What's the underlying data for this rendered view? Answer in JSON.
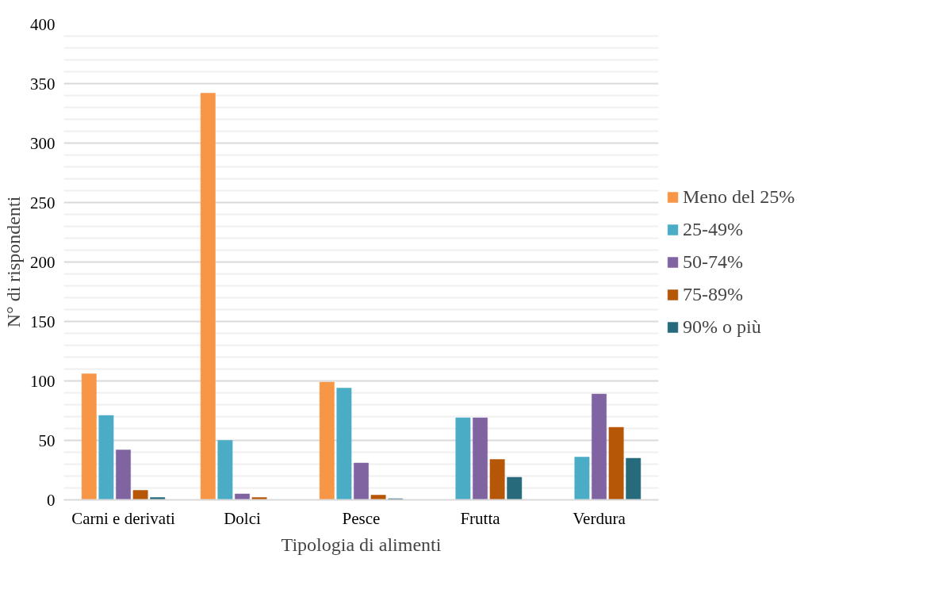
{
  "chart_data": {
    "type": "bar",
    "xlabel": "Tipologia di alimenti",
    "ylabel": "N° di rispondenti",
    "categories": [
      "Carni e derivati",
      "Dolci",
      "Pesce",
      "Frutta",
      "Verdura"
    ],
    "series": [
      {
        "name": "Meno del 25%",
        "color": "#f79646",
        "values": [
          106,
          342,
          99,
          0,
          0
        ]
      },
      {
        "name": "25-49%",
        "color": "#4bacc6",
        "values": [
          71,
          50,
          94,
          69,
          36
        ]
      },
      {
        "name": "50-74%",
        "color": "#8064a2",
        "values": [
          42,
          5,
          31,
          69,
          89
        ]
      },
      {
        "name": "75-89%",
        "color": "#b65708",
        "values": [
          8,
          2,
          4,
          34,
          61
        ]
      },
      {
        "name": "90% o più",
        "color": "#276a7c",
        "values": [
          2,
          0,
          1,
          19,
          35
        ]
      }
    ],
    "ylim": [
      0,
      400
    ],
    "yticks": [
      0,
      50,
      100,
      150,
      200,
      250,
      300,
      350,
      400
    ],
    "grid": "y",
    "legend": "right"
  }
}
